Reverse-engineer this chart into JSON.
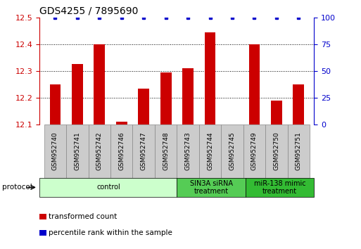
{
  "title": "GDS4255 / 7895690",
  "samples": [
    "GSM952740",
    "GSM952741",
    "GSM952742",
    "GSM952746",
    "GSM952747",
    "GSM952748",
    "GSM952743",
    "GSM952744",
    "GSM952745",
    "GSM952749",
    "GSM952750",
    "GSM952751"
  ],
  "transformed_count": [
    12.25,
    12.325,
    12.4,
    12.11,
    12.235,
    12.295,
    12.31,
    12.445,
    12.1,
    12.4,
    12.19,
    12.25
  ],
  "percentile_rank": [
    100,
    100,
    100,
    100,
    100,
    100,
    100,
    100,
    100,
    100,
    100,
    100
  ],
  "bar_color": "#cc0000",
  "dot_color": "#0000cc",
  "ylim_left": [
    12.1,
    12.5
  ],
  "ylim_right": [
    0,
    100
  ],
  "yticks_left": [
    12.1,
    12.2,
    12.3,
    12.4,
    12.5
  ],
  "yticks_right": [
    0,
    25,
    50,
    75,
    100
  ],
  "groups": [
    {
      "label": "control",
      "start": 0,
      "end": 6,
      "color": "#ccffcc"
    },
    {
      "label": "SIN3A siRNA\ntreatment",
      "start": 6,
      "end": 9,
      "color": "#55cc55"
    },
    {
      "label": "miR-138 mimic\ntreatment",
      "start": 9,
      "end": 12,
      "color": "#33bb33"
    }
  ],
  "protocol_label": "protocol",
  "legend_items": [
    {
      "color": "#cc0000",
      "label": "transformed count"
    },
    {
      "color": "#0000cc",
      "label": "percentile rank within the sample"
    }
  ],
  "grid_color": "#000000",
  "background_color": "#ffffff",
  "title_fontsize": 10,
  "tick_fontsize": 8,
  "bar_width": 0.5,
  "sample_box_color": "#cccccc",
  "sample_box_edgecolor": "#888888"
}
